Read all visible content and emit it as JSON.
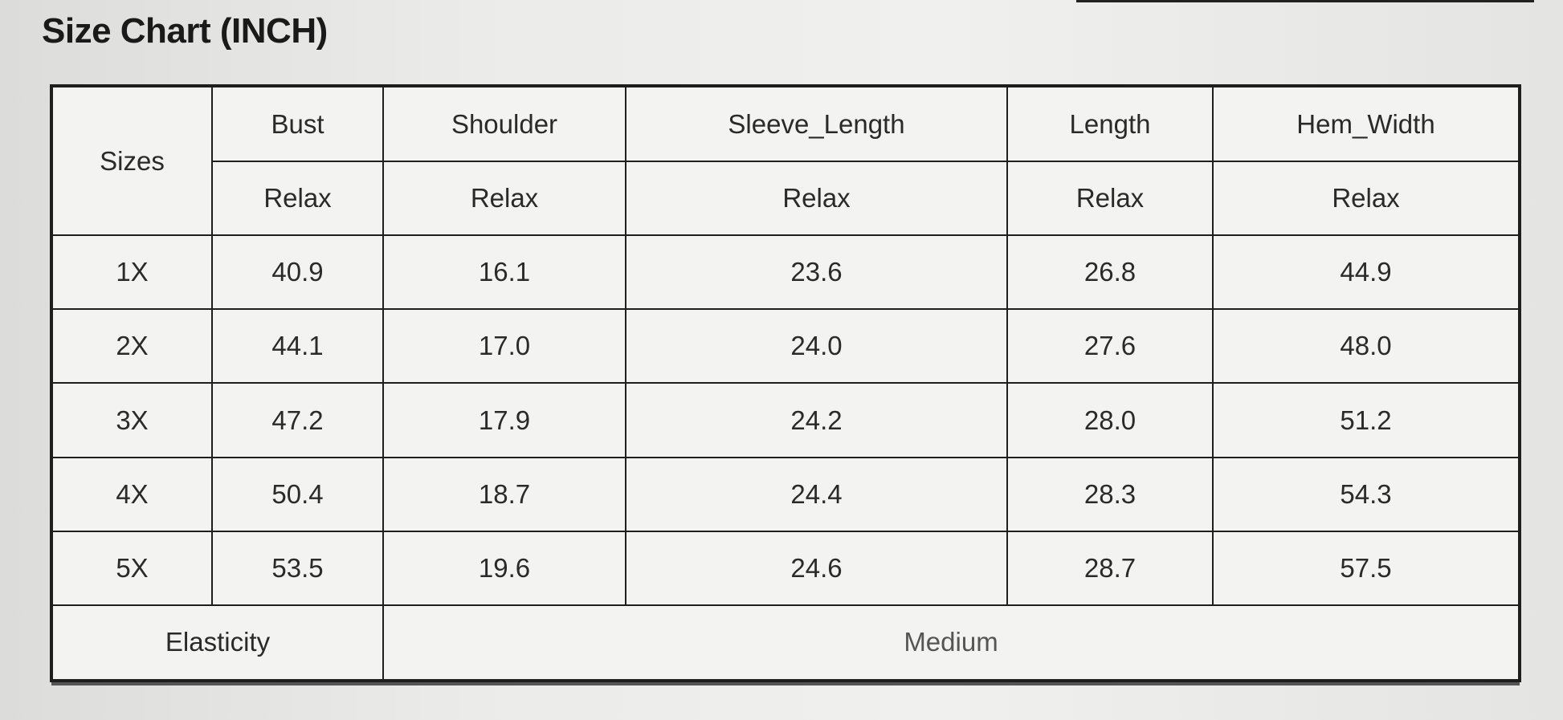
{
  "title": "Size Chart (INCH)",
  "table": {
    "sizes_header": "Sizes",
    "columns": [
      "Bust",
      "Shoulder",
      "Sleeve_Length",
      "Length",
      "Hem_Width"
    ],
    "subheaders": [
      "Relax",
      "Relax",
      "Relax",
      "Relax",
      "Relax"
    ],
    "rows": [
      {
        "size": "1X",
        "values": [
          "40.9",
          "16.1",
          "23.6",
          "26.8",
          "44.9"
        ]
      },
      {
        "size": "2X",
        "values": [
          "44.1",
          "17.0",
          "24.0",
          "27.6",
          "48.0"
        ]
      },
      {
        "size": "3X",
        "values": [
          "47.2",
          "17.9",
          "24.2",
          "28.0",
          "51.2"
        ]
      },
      {
        "size": "4X",
        "values": [
          "50.4",
          "18.7",
          "24.4",
          "28.3",
          "54.3"
        ]
      },
      {
        "size": "5X",
        "values": [
          "53.5",
          "19.6",
          "24.6",
          "28.7",
          "57.5"
        ]
      }
    ],
    "elasticity_label": "Elasticity",
    "elasticity_value": "Medium"
  }
}
